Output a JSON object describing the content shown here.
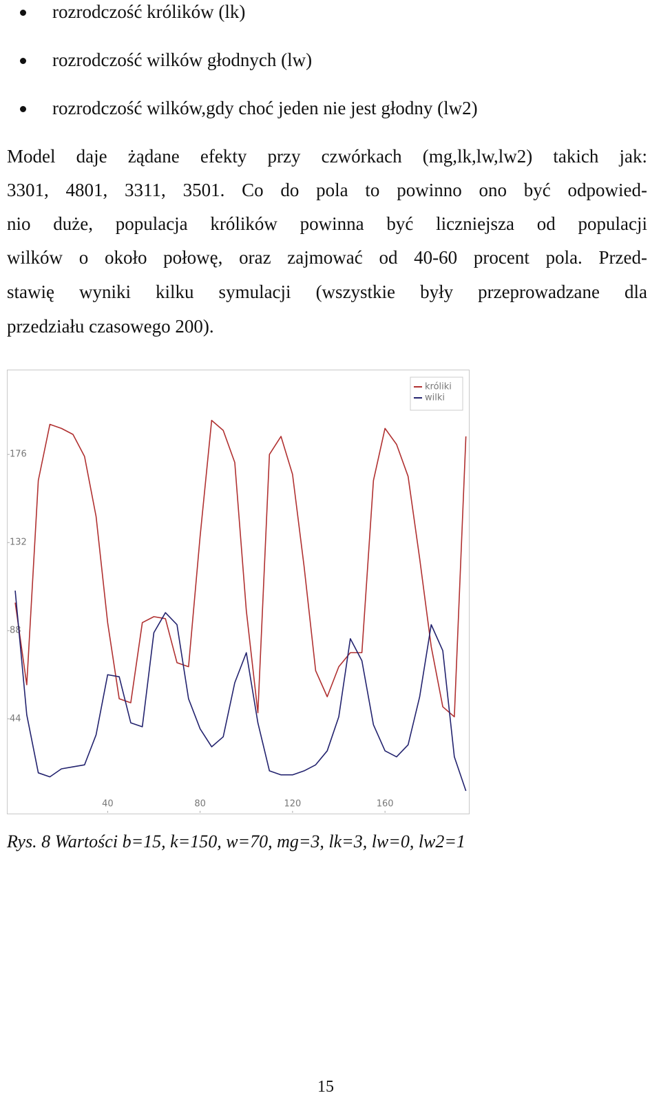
{
  "bullets": [
    "rozrodczość królików (lk)",
    "rozrodczość wilków głodnych (lw)",
    "rozrodczość wilków,gdy choć jeden nie jest głodny (lw2)"
  ],
  "paragraph": {
    "lines": [
      "Model daje żądane efekty przy czwórkach (mg,lk,lw,lw2) takich jak:",
      "3301, 4801, 3311, 3501. Co do pola to powinno ono być odpowied-",
      "nio duże, populacja królików powinna być liczniejsza od populacji",
      "wilków o około połowę, oraz zajmować od 40-60 procent pola. Przed-",
      "stawię wyniki kilku symulacji (wszystkie były przeprowadzane dla",
      "przedziału czasowego 200)."
    ]
  },
  "chart_data": {
    "type": "line",
    "x": [
      0,
      5,
      10,
      15,
      20,
      25,
      30,
      35,
      40,
      45,
      50,
      55,
      60,
      65,
      70,
      75,
      80,
      85,
      90,
      95,
      100,
      105,
      110,
      115,
      120,
      125,
      130,
      135,
      140,
      145,
      150,
      155,
      160,
      165,
      170,
      175,
      180,
      185,
      190,
      195
    ],
    "series": [
      {
        "name": "króliki",
        "color": "#b03030",
        "values": [
          102,
          61,
          163,
          191,
          189,
          186,
          175,
          145,
          92,
          54,
          52,
          92,
          95,
          94,
          72,
          70,
          135,
          193,
          188,
          172,
          98,
          47,
          176,
          185,
          166,
          120,
          68,
          55,
          70,
          77,
          77,
          163,
          189,
          181,
          165,
          124,
          80,
          50,
          45,
          185
        ]
      },
      {
        "name": "wilki",
        "color": "#22226e",
        "values": [
          108,
          46,
          17,
          15,
          19,
          20,
          21,
          36,
          66,
          65,
          42,
          40,
          87,
          97,
          91,
          54,
          39,
          30,
          35,
          62,
          77,
          42,
          18,
          16,
          16,
          18,
          21,
          28,
          45,
          84,
          73,
          41,
          28,
          25,
          31,
          55,
          91,
          78,
          25,
          8
        ]
      }
    ],
    "xlim": [
      -3,
      196
    ],
    "ylim": [
      -3,
      218
    ],
    "xticks": [
      40,
      80,
      120,
      160
    ],
    "yticks": [
      44,
      88,
      132,
      176
    ],
    "legend": "top-right"
  },
  "caption": "Rys. 8 Wartości b=15, k=150, w=70, mg=3, lk=3, lw=0, lw2=1",
  "page_number": "15"
}
